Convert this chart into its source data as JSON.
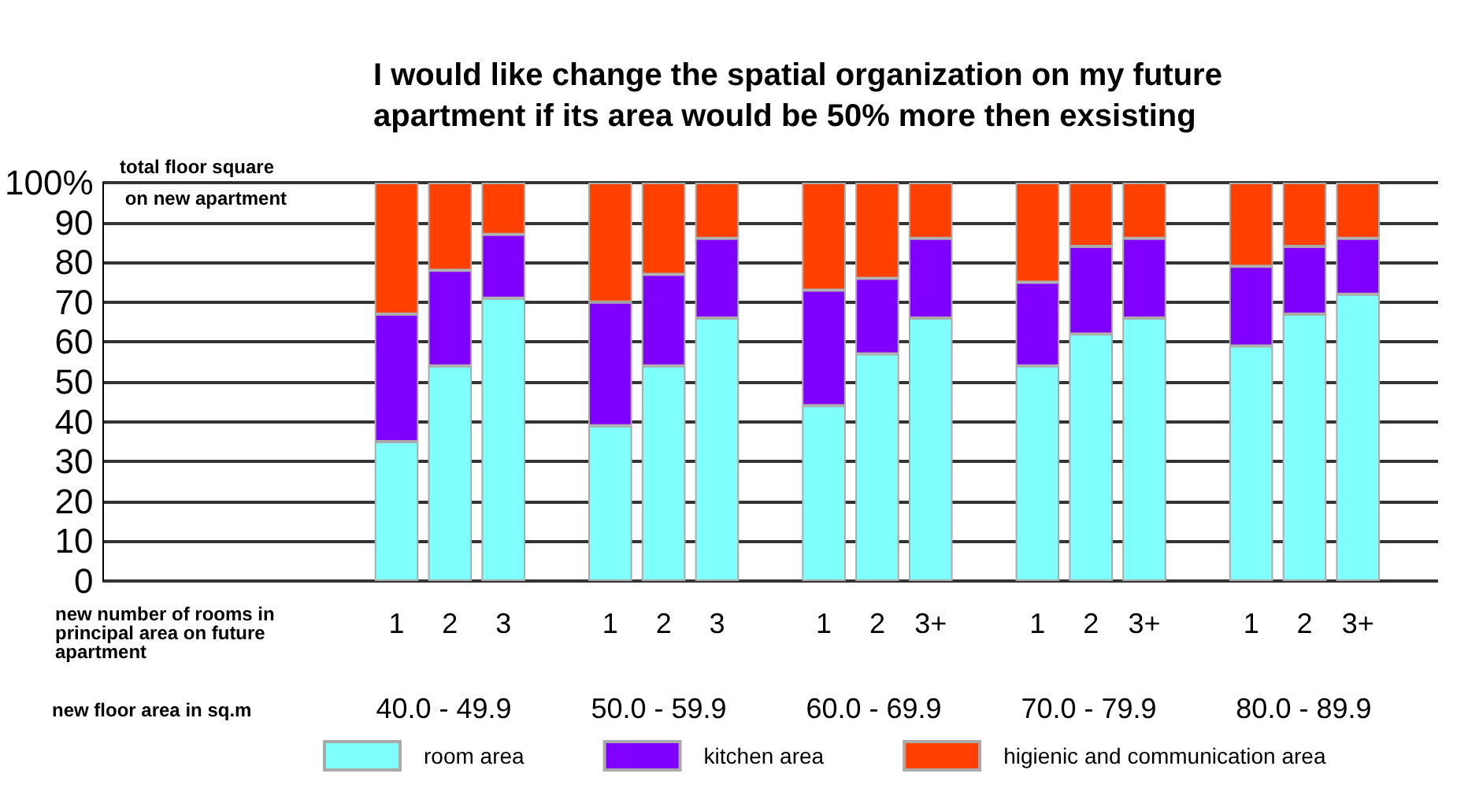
{
  "chart_data": {
    "type": "bar",
    "stacked": true,
    "title": "I would like change the spatial organization on my future apartment if its area would be 50% more then exsisting",
    "ylabel": "total floor square  on new apartment",
    "categories": [
      null,
      null,
      null,
      null,
      null,
      "1",
      "2",
      "3",
      null,
      "1",
      "2",
      "3",
      null,
      "1",
      "2",
      "3+",
      null,
      "1",
      "2",
      "3+",
      null,
      "1",
      "2",
      "3+",
      null
    ],
    "series": [
      {
        "name": "room area",
        "color": "#80ffff",
        "values": [
          null,
          null,
          null,
          null,
          null,
          35,
          54,
          71,
          null,
          39,
          54,
          66,
          null,
          44,
          57,
          66,
          null,
          54,
          62,
          66,
          null,
          59,
          67,
          72,
          null
        ]
      },
      {
        "name": "kitchen area",
        "color": "#8000ff",
        "values": [
          null,
          null,
          null,
          null,
          null,
          32,
          24,
          16,
          null,
          31,
          23,
          20,
          null,
          29,
          19,
          20,
          null,
          21,
          22,
          20,
          null,
          20,
          17,
          14,
          null
        ]
      },
      {
        "name": "higienic and communication area",
        "color": "#ff4000",
        "values": [
          null,
          null,
          null,
          null,
          null,
          33,
          22,
          13,
          null,
          30,
          23,
          14,
          null,
          27,
          24,
          14,
          null,
          25,
          16,
          14,
          null,
          21,
          16,
          14,
          null
        ]
      }
    ],
    "ylim": [
      0,
      100
    ],
    "yticks": [
      0,
      10,
      20,
      30,
      40,
      50,
      60,
      70,
      80,
      90,
      {
        "value": 100,
        "label": "100%"
      }
    ],
    "grid": "y",
    "legend": "bottom",
    "annotations": [
      "new number of rooms in principal area on future apartment",
      "new floor area in sq.m",
      "40.0 - 49.9",
      "50.0 - 59.9",
      "60.0 - 69.9",
      "70.0 - 79.9",
      "80.0 - 89.9"
    ]
  }
}
